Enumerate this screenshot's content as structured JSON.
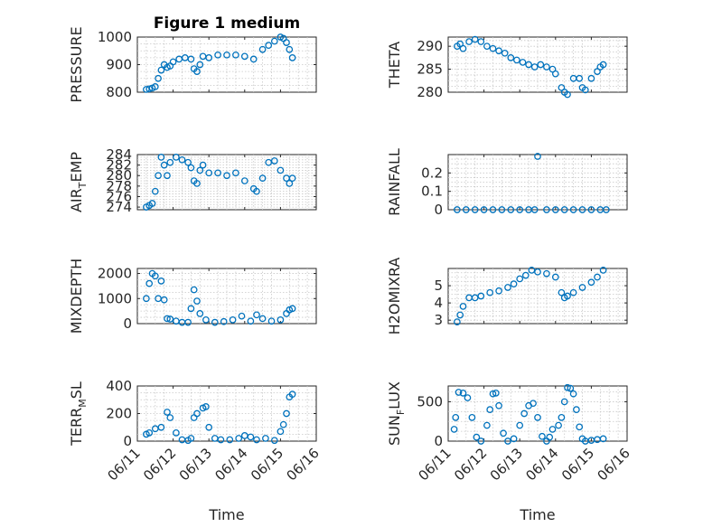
{
  "figure": {
    "title": "Figure 1 medium",
    "xlabel": "Time",
    "marker_color": "#0072BD"
  },
  "chart_data": [
    {
      "type": "scatter",
      "ylabel": "PRESSURE",
      "ylabel_sub": "",
      "ylabel_tail": "",
      "xlim": [
        "06/11",
        "06/16"
      ],
      "xticks": [
        "06/11",
        "06/12",
        "06/13",
        "06/14",
        "06/15",
        "06/16"
      ],
      "show_xticklabels": false,
      "ylim": [
        800,
        1000
      ],
      "yticks": [
        800,
        900,
        1000
      ],
      "grid": true,
      "x": [
        "06/11 06:00",
        "06/11 08:00",
        "06/11 10:00",
        "06/11 12:00",
        "06/11 14:00",
        "06/11 16:00",
        "06/11 18:00",
        "06/11 20:00",
        "06/11 22:00",
        "06/12 00:00",
        "06/12 04:00",
        "06/12 08:00",
        "06/12 12:00",
        "06/12 14:00",
        "06/12 16:00",
        "06/12 18:00",
        "06/12 20:00",
        "06/13 00:00",
        "06/13 06:00",
        "06/13 12:00",
        "06/13 18:00",
        "06/14 00:00",
        "06/14 06:00",
        "06/14 12:00",
        "06/14 16:00",
        "06/14 20:00",
        "06/15 00:00",
        "06/15 02:00",
        "06/15 04:00",
        "06/15 06:00",
        "06/15 08:00"
      ],
      "y": [
        810,
        812,
        815,
        820,
        850,
        880,
        900,
        890,
        895,
        910,
        920,
        925,
        920,
        885,
        875,
        900,
        930,
        925,
        935,
        935,
        935,
        930,
        920,
        955,
        970,
        985,
        1000,
        995,
        980,
        955,
        925
      ]
    },
    {
      "type": "scatter",
      "ylabel": "THETA",
      "ylabel_sub": "",
      "ylabel_tail": "",
      "xlim": [
        "06/11",
        "06/16"
      ],
      "xticks": [
        "06/11",
        "06/12",
        "06/13",
        "06/14",
        "06/15",
        "06/16"
      ],
      "show_xticklabels": false,
      "ylim": [
        280,
        292
      ],
      "yticks": [
        280,
        285,
        290
      ],
      "grid": true,
      "x": [
        "06/11 06:00",
        "06/11 08:00",
        "06/11 10:00",
        "06/11 14:00",
        "06/11 18:00",
        "06/11 22:00",
        "06/12 02:00",
        "06/12 06:00",
        "06/12 10:00",
        "06/12 14:00",
        "06/12 18:00",
        "06/12 22:00",
        "06/13 02:00",
        "06/13 06:00",
        "06/13 10:00",
        "06/13 14:00",
        "06/13 18:00",
        "06/13 22:00",
        "06/14 00:00",
        "06/14 04:00",
        "06/14 06:00",
        "06/14 08:00",
        "06/14 12:00",
        "06/14 16:00",
        "06/14 18:00",
        "06/14 20:00",
        "06/15 00:00",
        "06/15 04:00",
        "06/15 06:00",
        "06/15 08:00"
      ],
      "y": [
        290,
        290.5,
        289.5,
        291,
        291.5,
        291,
        290,
        289.5,
        289,
        288.5,
        287.5,
        287,
        286.5,
        286,
        285.5,
        286,
        285.5,
        285,
        284,
        281,
        280,
        279.5,
        283,
        283,
        281,
        280.5,
        283,
        284.5,
        285.5,
        286
      ]
    },
    {
      "type": "scatter",
      "ylabel": "AIR",
      "ylabel_sub": "T",
      "ylabel_tail": "EMP",
      "xlim": [
        "06/11",
        "06/16"
      ],
      "xticks": [
        "06/11",
        "06/12",
        "06/13",
        "06/14",
        "06/15",
        "06/16"
      ],
      "show_xticklabels": false,
      "ylim": [
        273.5,
        284
      ],
      "yticks": [
        274,
        276,
        278,
        280,
        282,
        284
      ],
      "grid": true,
      "x": [
        "06/11 06:00",
        "06/11 08:00",
        "06/11 10:00",
        "06/11 12:00",
        "06/11 14:00",
        "06/11 16:00",
        "06/11 18:00",
        "06/11 20:00",
        "06/11 22:00",
        "06/12 02:00",
        "06/12 06:00",
        "06/12 10:00",
        "06/12 12:00",
        "06/12 14:00",
        "06/12 16:00",
        "06/12 18:00",
        "06/12 20:00",
        "06/13 00:00",
        "06/13 06:00",
        "06/13 12:00",
        "06/13 18:00",
        "06/14 00:00",
        "06/14 06:00",
        "06/14 08:00",
        "06/14 12:00",
        "06/14 16:00",
        "06/14 20:00",
        "06/15 00:00",
        "06/15 04:00",
        "06/15 06:00",
        "06/15 08:00"
      ],
      "y": [
        274,
        274.3,
        274.7,
        277,
        280,
        283.5,
        282,
        280,
        282.5,
        283.5,
        283,
        282.5,
        281.5,
        279,
        278.5,
        281,
        282,
        280.5,
        280.5,
        280,
        280.5,
        279,
        277.5,
        277,
        279.5,
        282.5,
        282.8,
        281,
        279.5,
        278.5,
        279.5
      ]
    },
    {
      "type": "scatter",
      "ylabel": "RAINFALL",
      "ylabel_sub": "",
      "ylabel_tail": "",
      "xlim": [
        "06/11",
        "06/16"
      ],
      "xticks": [
        "06/11",
        "06/12",
        "06/13",
        "06/14",
        "06/15",
        "06/16"
      ],
      "show_xticklabels": false,
      "ylim": [
        0,
        0.3
      ],
      "yticks": [
        0,
        0.1,
        0.2
      ],
      "grid": true,
      "x": [
        "06/11 06:00",
        "06/11 12:00",
        "06/11 18:00",
        "06/12 00:00",
        "06/12 06:00",
        "06/12 12:00",
        "06/12 18:00",
        "06/13 00:00",
        "06/13 06:00",
        "06/13 10:00",
        "06/13 12:00",
        "06/13 18:00",
        "06/14 00:00",
        "06/14 06:00",
        "06/14 12:00",
        "06/14 18:00",
        "06/15 00:00",
        "06/15 06:00",
        "06/15 10:00"
      ],
      "y": [
        0,
        0,
        0,
        0,
        0,
        0,
        0,
        0,
        0,
        0,
        0.29,
        0,
        0,
        0,
        0,
        0,
        0,
        0,
        0
      ]
    },
    {
      "type": "scatter",
      "ylabel": "MIXDEPTH",
      "ylabel_sub": "",
      "ylabel_tail": "",
      "xlim": [
        "06/11",
        "06/16"
      ],
      "xticks": [
        "06/11",
        "06/12",
        "06/13",
        "06/14",
        "06/15",
        "06/16"
      ],
      "show_xticklabels": false,
      "ylim": [
        0,
        2200
      ],
      "yticks": [
        0,
        1000,
        2000
      ],
      "grid": true,
      "x": [
        "06/11 06:00",
        "06/11 08:00",
        "06/11 10:00",
        "06/11 12:00",
        "06/11 14:00",
        "06/11 16:00",
        "06/11 18:00",
        "06/11 20:00",
        "06/11 22:00",
        "06/12 02:00",
        "06/12 06:00",
        "06/12 10:00",
        "06/12 12:00",
        "06/12 14:00",
        "06/12 16:00",
        "06/12 18:00",
        "06/12 22:00",
        "06/13 04:00",
        "06/13 10:00",
        "06/13 16:00",
        "06/13 22:00",
        "06/14 04:00",
        "06/14 08:00",
        "06/14 12:00",
        "06/14 18:00",
        "06/15 00:00",
        "06/15 04:00",
        "06/15 06:00",
        "06/15 08:00"
      ],
      "y": [
        1000,
        1600,
        2000,
        1900,
        1000,
        1700,
        950,
        200,
        180,
        100,
        50,
        50,
        600,
        1350,
        900,
        400,
        150,
        50,
        80,
        150,
        300,
        100,
        350,
        200,
        100,
        150,
        400,
        550,
        600
      ]
    },
    {
      "type": "scatter",
      "ylabel": "H2OMIXRA",
      "ylabel_sub": "",
      "ylabel_tail": "",
      "xlim": [
        "06/11",
        "06/16"
      ],
      "xticks": [
        "06/11",
        "06/12",
        "06/13",
        "06/14",
        "06/15",
        "06/16"
      ],
      "show_xticklabels": false,
      "ylim": [
        2.8,
        6
      ],
      "yticks": [
        3,
        4,
        5
      ],
      "grid": true,
      "x": [
        "06/11 06:00",
        "06/11 08:00",
        "06/11 10:00",
        "06/11 14:00",
        "06/11 18:00",
        "06/11 22:00",
        "06/12 04:00",
        "06/12 10:00",
        "06/12 16:00",
        "06/12 20:00",
        "06/13 00:00",
        "06/13 04:00",
        "06/13 08:00",
        "06/13 12:00",
        "06/13 18:00",
        "06/14 00:00",
        "06/14 04:00",
        "06/14 06:00",
        "06/14 08:00",
        "06/14 12:00",
        "06/14 18:00",
        "06/15 00:00",
        "06/15 04:00",
        "06/15 08:00"
      ],
      "y": [
        2.9,
        3.3,
        3.8,
        4.3,
        4.3,
        4.4,
        4.6,
        4.7,
        4.9,
        5.1,
        5.4,
        5.6,
        5.9,
        5.8,
        5.7,
        5.5,
        4.6,
        4.3,
        4.4,
        4.6,
        4.9,
        5.2,
        5.5,
        5.9
      ]
    },
    {
      "type": "scatter",
      "ylabel": "TERR",
      "ylabel_sub": "M",
      "ylabel_tail": "SL",
      "xlim": [
        "06/11",
        "06/16"
      ],
      "xticks": [
        "06/11",
        "06/12",
        "06/13",
        "06/14",
        "06/15",
        "06/16"
      ],
      "show_xticklabels": true,
      "ylim": [
        0,
        400
      ],
      "yticks": [
        0,
        200,
        400
      ],
      "grid": true,
      "x": [
        "06/11 06:00",
        "06/11 08:00",
        "06/11 12:00",
        "06/11 16:00",
        "06/11 20:00",
        "06/11 22:00",
        "06/12 02:00",
        "06/12 06:00",
        "06/12 10:00",
        "06/12 12:00",
        "06/12 14:00",
        "06/12 16:00",
        "06/12 20:00",
        "06/12 22:00",
        "06/13 00:00",
        "06/13 04:00",
        "06/13 08:00",
        "06/13 14:00",
        "06/13 20:00",
        "06/14 00:00",
        "06/14 04:00",
        "06/14 08:00",
        "06/14 14:00",
        "06/14 20:00",
        "06/15 00:00",
        "06/15 02:00",
        "06/15 04:00",
        "06/15 06:00",
        "06/15 08:00"
      ],
      "y": [
        50,
        60,
        90,
        100,
        210,
        170,
        60,
        10,
        5,
        20,
        170,
        200,
        240,
        250,
        100,
        20,
        10,
        10,
        20,
        40,
        30,
        10,
        20,
        5,
        70,
        120,
        200,
        320,
        340
      ]
    },
    {
      "type": "scatter",
      "ylabel": "SUN",
      "ylabel_sub": "F",
      "ylabel_tail": "LUX",
      "xlim": [
        "06/11",
        "06/16"
      ],
      "xticks": [
        "06/11",
        "06/12",
        "06/13",
        "06/14",
        "06/15",
        "06/16"
      ],
      "show_xticklabels": true,
      "ylim": [
        0,
        700
      ],
      "yticks": [
        0,
        500
      ],
      "grid": true,
      "x": [
        "06/11 04:00",
        "06/11 05:00",
        "06/11 07:00",
        "06/11 10:00",
        "06/11 13:00",
        "06/11 16:00",
        "06/11 19:00",
        "06/11 22:00",
        "06/12 02:00",
        "06/12 04:00",
        "06/12 06:00",
        "06/12 08:00",
        "06/12 10:00",
        "06/12 13:00",
        "06/12 16:00",
        "06/12 20:00",
        "06/13 00:00",
        "06/13 03:00",
        "06/13 06:00",
        "06/13 09:00",
        "06/13 12:00",
        "06/13 15:00",
        "06/13 18:00",
        "06/13 20:00",
        "06/13 22:00",
        "06/14 02:00",
        "06/14 04:00",
        "06/14 06:00",
        "06/14 08:00",
        "06/14 10:00",
        "06/14 12:00",
        "06/14 14:00",
        "06/14 16:00",
        "06/14 18:00",
        "06/14 20:00",
        "06/15 00:00",
        "06/15 04:00",
        "06/15 08:00"
      ],
      "y": [
        150,
        300,
        620,
        610,
        550,
        300,
        50,
        0,
        200,
        400,
        600,
        610,
        450,
        100,
        0,
        30,
        200,
        350,
        450,
        480,
        300,
        60,
        0,
        50,
        150,
        200,
        300,
        500,
        680,
        670,
        600,
        400,
        180,
        30,
        0,
        10,
        20,
        30
      ]
    }
  ]
}
